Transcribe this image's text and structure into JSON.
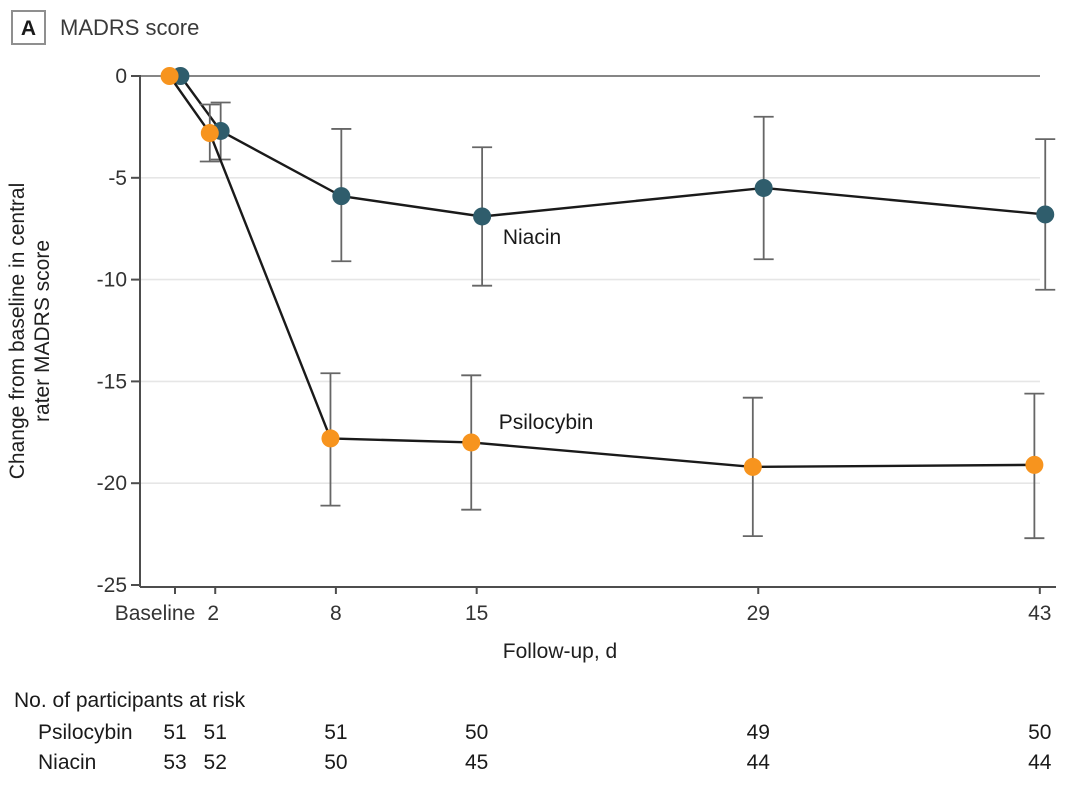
{
  "panel": {
    "letter": "A",
    "title": "MADRS score"
  },
  "colors": {
    "psilocybin_orange": "#F7941E",
    "niacin_teal": "#2F5D6C",
    "series_line": "#1A1A1A",
    "grid": "#E6E6E6",
    "zero_line": "#757575",
    "axis": "#4D4D4D",
    "error_bar": "#666666",
    "text_dark": "#1A1A1A"
  },
  "chart_data": {
    "type": "line",
    "title": "MADRS score",
    "xlabel": "Follow-up, d",
    "ylabel_line1": "Change from baseline in central",
    "ylabel_line2": "rater MADRS score",
    "x_days": [
      0,
      2,
      8,
      15,
      29,
      43
    ],
    "x_tick_labels": [
      "Baseline",
      "2",
      "8",
      "15",
      "29",
      "43"
    ],
    "x_label_dx": [
      -20,
      -2,
      0,
      0,
      0,
      0
    ],
    "y_ticks": [
      0,
      -5,
      -10,
      -15,
      -20,
      -25
    ],
    "y_tick_labels": [
      "0",
      "-5",
      "-10",
      "-15",
      "-20",
      "-25"
    ],
    "ylim": [
      -25,
      0
    ],
    "grid_values": [
      -5,
      -10,
      -15,
      -20
    ],
    "grid_on": true,
    "legend_position": "inline-labels",
    "series": [
      {
        "name": "Niacin",
        "color_key": "niacin_teal",
        "jitter_days": 0.27,
        "values": [
          0,
          -2.7,
          -5.9,
          -6.9,
          -5.5,
          -6.8
        ],
        "ci_high": [
          null,
          -1.3,
          -2.6,
          -3.5,
          -2.0,
          -3.1
        ],
        "ci_low": [
          null,
          -4.1,
          -9.1,
          -10.3,
          -9.0,
          -10.5
        ],
        "label": "Niacin",
        "label_day": 16.3,
        "label_value": -7.9
      },
      {
        "name": "Psilocybin",
        "color_key": "psilocybin_orange",
        "jitter_days": -0.27,
        "values": [
          0,
          -2.8,
          -17.8,
          -18.0,
          -19.2,
          -19.1
        ],
        "ci_high": [
          null,
          -1.4,
          -14.6,
          -14.7,
          -15.8,
          -15.6
        ],
        "ci_low": [
          null,
          -4.2,
          -21.1,
          -21.3,
          -22.6,
          -22.7
        ],
        "label": "Psilocybin",
        "label_day": 16.1,
        "label_value": -17.0
      }
    ]
  },
  "risk_table": {
    "heading": "No. of participants at risk",
    "rows": [
      {
        "label": "Psilocybin",
        "values": [
          "51",
          "51",
          "51",
          "50",
          "49",
          "50"
        ]
      },
      {
        "label": "Niacin",
        "values": [
          "53",
          "52",
          "50",
          "45",
          "44",
          "44"
        ]
      }
    ]
  }
}
